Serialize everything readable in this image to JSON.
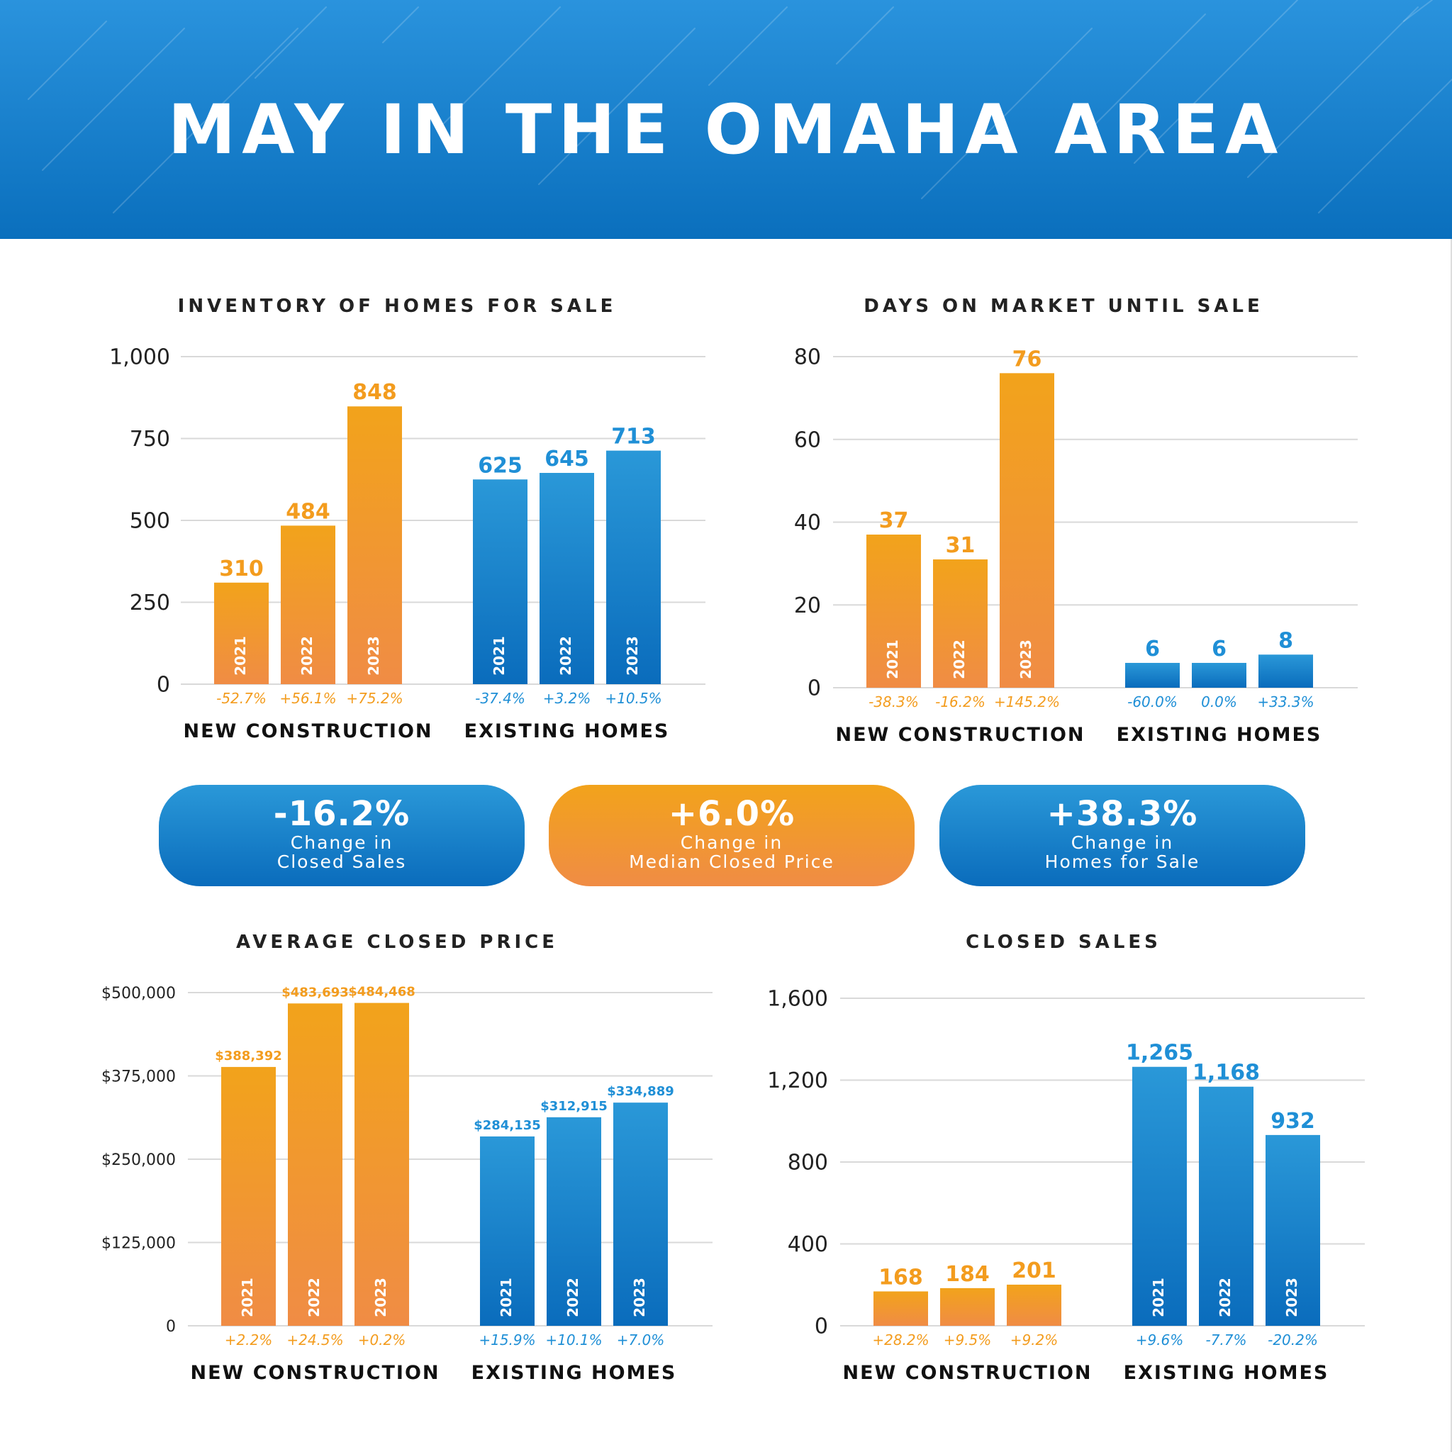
{
  "header": {
    "title": "MAY IN THE OMAHA AREA"
  },
  "colors": {
    "new_top": "#f2a31b",
    "new_bottom": "#f08c45",
    "exist_top": "#2a98d8",
    "exist_bottom": "#0a6cbc",
    "new_text": "#f39c1e",
    "exist_text": "#1f8fd6",
    "grid": "#d9d9d9"
  },
  "categories": [
    "2021",
    "2022",
    "2023"
  ],
  "group_labels": [
    "NEW CONSTRUCTION",
    "EXISTING HOMES"
  ],
  "chart_data": [
    {
      "type": "bar",
      "title": "INVENTORY OF HOMES FOR SALE",
      "ylim": [
        0,
        1000
      ],
      "yticks": [
        "0",
        "250",
        "500",
        "750",
        "1,000"
      ],
      "series": [
        {
          "name": "NEW CONSTRUCTION",
          "values": [
            310,
            484,
            848
          ],
          "value_labels": [
            "310",
            "484",
            "848"
          ],
          "changes": [
            "-52.7%",
            "+56.1%",
            "+75.2%"
          ]
        },
        {
          "name": "EXISTING HOMES",
          "values": [
            625,
            645,
            713
          ],
          "value_labels": [
            "625",
            "645",
            "713"
          ],
          "changes": [
            "-37.4%",
            "+3.2%",
            "+10.5%"
          ]
        }
      ]
    },
    {
      "type": "bar",
      "title": "DAYS ON MARKET UNTIL SALE",
      "ylim": [
        0,
        80
      ],
      "yticks": [
        "0",
        "20",
        "40",
        "60",
        "80"
      ],
      "series": [
        {
          "name": "NEW CONSTRUCTION",
          "values": [
            37,
            31,
            76
          ],
          "value_labels": [
            "37",
            "31",
            "76"
          ],
          "changes": [
            "-38.3%",
            "-16.2%",
            "+145.2%"
          ]
        },
        {
          "name": "EXISTING HOMES",
          "values": [
            6,
            6,
            8
          ],
          "value_labels": [
            "6",
            "6",
            "8"
          ],
          "changes": [
            "-60.0%",
            "0.0%",
            "+33.3%"
          ]
        }
      ]
    },
    {
      "type": "bar",
      "title": "AVERAGE CLOSED PRICE",
      "ylim": [
        0,
        500000
      ],
      "yticks": [
        "0",
        "$125,000",
        "$250,000",
        "$375,000",
        "$500,000"
      ],
      "series": [
        {
          "name": "NEW CONSTRUCTION",
          "values": [
            388392,
            483693,
            484468
          ],
          "value_labels": [
            "$388,392",
            "$483,693",
            "$484,468"
          ],
          "changes": [
            "+2.2%",
            "+24.5%",
            "+0.2%"
          ]
        },
        {
          "name": "EXISTING HOMES",
          "values": [
            284135,
            312915,
            334889
          ],
          "value_labels": [
            "$284,135",
            "$312,915",
            "$334,889"
          ],
          "changes": [
            "+15.9%",
            "+10.1%",
            "+7.0%"
          ]
        }
      ]
    },
    {
      "type": "bar",
      "title": "CLOSED SALES",
      "ylim": [
        0,
        1600
      ],
      "yticks": [
        "0",
        "400",
        "800",
        "1,200",
        "1,600"
      ],
      "series": [
        {
          "name": "NEW CONSTRUCTION",
          "values": [
            168,
            184,
            201
          ],
          "value_labels": [
            "168",
            "184",
            "201"
          ],
          "changes": [
            "+28.2%",
            "+9.5%",
            "+9.2%"
          ]
        },
        {
          "name": "EXISTING HOMES",
          "values": [
            1265,
            1168,
            932
          ],
          "value_labels": [
            "1,265",
            "1,168",
            "932"
          ],
          "changes": [
            "+9.6%",
            "-7.7%",
            "-20.2%"
          ]
        }
      ]
    }
  ],
  "stats": [
    {
      "value": "-16.2%",
      "label": "Change in\nClosed Sales"
    },
    {
      "value": "+6.0%",
      "label": "Change in\nMedian Closed Price"
    },
    {
      "value": "+38.3%",
      "label": "Change in\nHomes for Sale"
    }
  ]
}
